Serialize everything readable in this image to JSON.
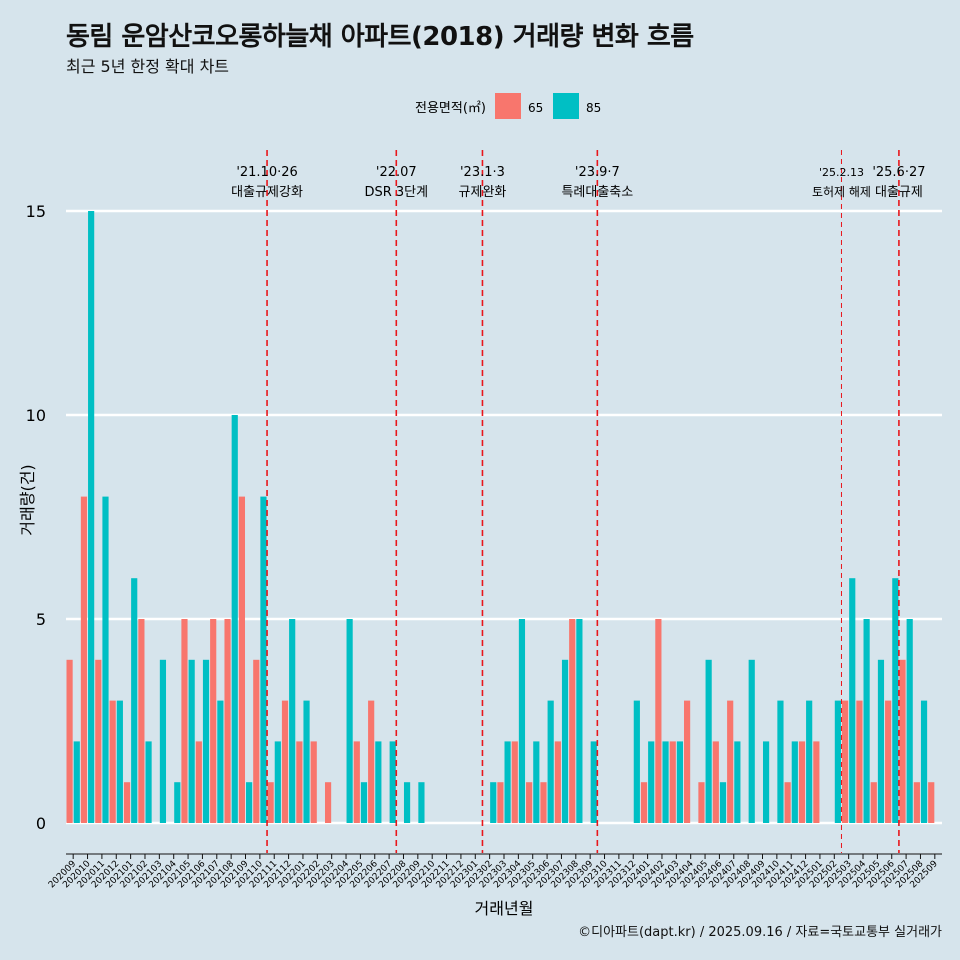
{
  "title": "동림 운암산코오롱하늘채 아파트(2018) 거래량 변화 흐름",
  "subtitle": "최근 5년 한정 확대 차트",
  "caption": "©디아파트(dapt.kr) / 2025.09.16 / 자료=국토교통부 실거래가",
  "colors": {
    "background": "#d6e4ec",
    "s65": "#f8766d",
    "s85": "#00bfc4",
    "event_line": "#e8161b"
  },
  "chart_data": {
    "type": "bar",
    "xlabel": "거래년월",
    "ylabel": "거래량(건)",
    "ylim": [
      0,
      15
    ],
    "yticks": [
      0,
      5,
      10,
      15
    ],
    "grid": "horizontal",
    "legend_title": "전용면적(㎡)",
    "legend_position": "top",
    "categories": [
      "202009",
      "202010",
      "202011",
      "202012",
      "202101",
      "202102",
      "202103",
      "202104",
      "202105",
      "202106",
      "202107",
      "202108",
      "202109",
      "202110",
      "202111",
      "202112",
      "202201",
      "202202",
      "202203",
      "202204",
      "202205",
      "202206",
      "202207",
      "202208",
      "202209",
      "202210",
      "202211",
      "202212",
      "202301",
      "202302",
      "202303",
      "202304",
      "202305",
      "202306",
      "202307",
      "202308",
      "202309",
      "202310",
      "202311",
      "202312",
      "202401",
      "202402",
      "202403",
      "202404",
      "202405",
      "202406",
      "202407",
      "202408",
      "202409",
      "202410",
      "202411",
      "202412",
      "202501",
      "202502",
      "202503",
      "202504",
      "202505",
      "202506",
      "202507",
      "202508",
      "202509"
    ],
    "series": [
      {
        "name": "65",
        "values": [
          4,
          8,
          4,
          3,
          1,
          5,
          0,
          0,
          5,
          2,
          5,
          5,
          8,
          4,
          1,
          3,
          2,
          2,
          1,
          0,
          2,
          3,
          0,
          0,
          0,
          0,
          0,
          0,
          0,
          0,
          1,
          2,
          1,
          1,
          2,
          5,
          0,
          0,
          0,
          0,
          1,
          5,
          2,
          3,
          1,
          2,
          3,
          0,
          0,
          0,
          1,
          2,
          2,
          0,
          3,
          3,
          1,
          3,
          4,
          1,
          1
        ]
      },
      {
        "name": "85",
        "values": [
          2,
          15,
          8,
          3,
          6,
          2,
          4,
          1,
          4,
          4,
          3,
          10,
          1,
          8,
          2,
          5,
          3,
          0,
          0,
          5,
          1,
          2,
          2,
          1,
          1,
          0,
          0,
          0,
          0,
          1,
          2,
          5,
          2,
          3,
          4,
          5,
          2,
          0,
          0,
          3,
          2,
          2,
          2,
          0,
          4,
          1,
          2,
          4,
          2,
          3,
          2,
          3,
          0,
          3,
          6,
          5,
          4,
          6,
          5,
          3,
          0
        ]
      }
    ],
    "events": [
      {
        "after": "202110",
        "date": "'21.10·26",
        "label": "대출규제강화"
      },
      {
        "after": "202207",
        "date": "'22.07",
        "label": "DSR 3단계"
      },
      {
        "after": "202301",
        "date": "'23.1·3",
        "label": "규제완화"
      },
      {
        "after": "202309",
        "date": "'23.9·7",
        "label": "특례대출축소"
      },
      {
        "after": "202502",
        "date": "'25.2.13",
        "label": "토허제 해제",
        "small": true
      },
      {
        "after": "202506",
        "date": "'25.6·27",
        "label": "대출규제"
      }
    ]
  }
}
